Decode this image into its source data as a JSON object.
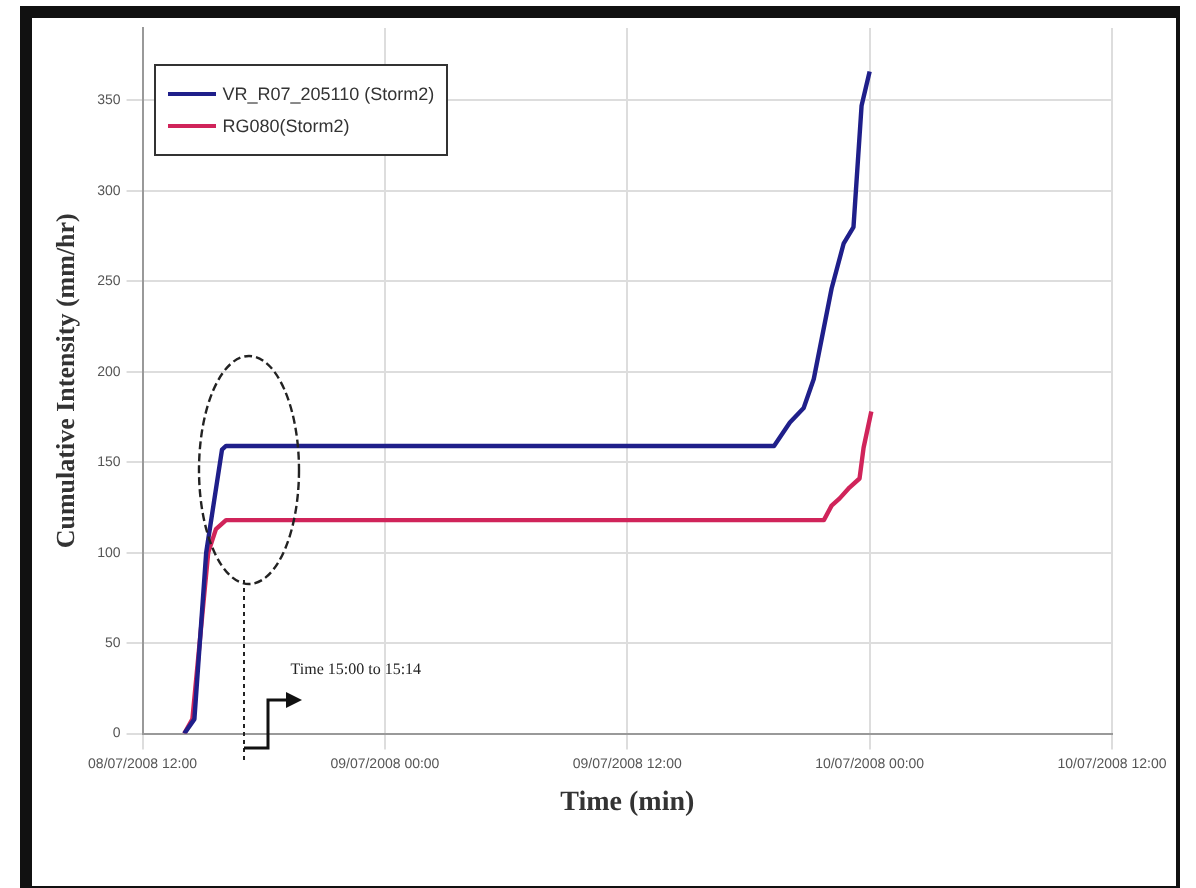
{
  "chart_data": {
    "type": "line",
    "xlabel": "Time (min)",
    "ylabel": "Cumulative Intensity (mm/hr)",
    "xlim": [
      "2008-07-08T12:00",
      "2008-07-10T12:00"
    ],
    "xticks": [
      {
        "value": "2008-07-08T12:00",
        "label": "08/07/2008 12:00"
      },
      {
        "value": "2008-07-09T00:00",
        "label": "09/07/2008 00:00"
      },
      {
        "value": "2008-07-09T12:00",
        "label": "09/07/2008 12:00"
      },
      {
        "value": "2008-07-10T00:00",
        "label": "10/07/2008 00:00"
      },
      {
        "value": "2008-07-10T12:00",
        "label": "10/07/2008 12:00"
      }
    ],
    "ylim": [
      0,
      390
    ],
    "yticks": [
      0,
      50,
      100,
      150,
      200,
      250,
      300,
      350
    ],
    "grid": true,
    "legend": "top left",
    "marker": "none",
    "line_style": "solid",
    "series": [
      {
        "name": "VR_R07_205110 (Storm2)",
        "color": "#1f1f8a",
        "x": [
          "2008-07-08T14:04",
          "2008-07-08T14:34",
          "2008-07-08T15:09",
          "2008-07-08T15:56",
          "2008-07-08T16:08",
          "2008-07-09T19:16",
          "2008-07-09T20:03",
          "2008-07-09T20:44",
          "2008-07-09T21:14",
          "2008-07-09T22:07",
          "2008-07-09T22:43",
          "2008-07-09T23:12",
          "2008-07-09T23:36",
          "2008-07-10T00:00"
        ],
        "values": [
          0,
          8,
          100,
          157,
          159,
          159,
          172,
          180,
          196,
          246,
          271,
          280,
          347,
          366
        ]
      },
      {
        "name": "RG080(Storm2)",
        "color": "#d0245a",
        "x": [
          "2008-07-08T14:04",
          "2008-07-08T14:28",
          "2008-07-08T15:15",
          "2008-07-08T15:38",
          "2008-07-08T16:08",
          "2008-07-09T21:44",
          "2008-07-09T22:07",
          "2008-07-09T22:31",
          "2008-07-09T23:00",
          "2008-07-09T23:30",
          "2008-07-09T23:42",
          "2008-07-10T00:05"
        ],
        "values": [
          0,
          8,
          100,
          113,
          118,
          118,
          126,
          130,
          136,
          141,
          158,
          178
        ]
      }
    ],
    "annotations": [
      "Time 15:00 to 15:14"
    ]
  }
}
